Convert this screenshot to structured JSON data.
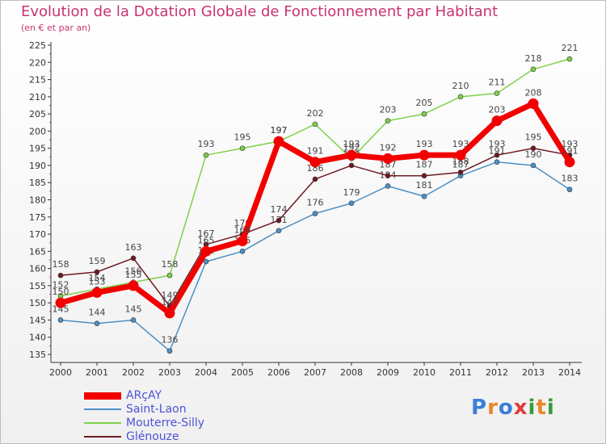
{
  "title": "Evolution de la Dotation Globale de Fonctionnement par Habitant",
  "subtitle": "(en € et par an)",
  "logo": {
    "text": "Proxiti",
    "letters": [
      "P",
      "r",
      "o",
      "x",
      "i",
      "t",
      "i"
    ],
    "colors": [
      "#3a7fd8",
      "#e8862a",
      "#3a7fd8",
      "#e23b3b",
      "#3a9a3a",
      "#e8862a",
      "#3a9a3a"
    ]
  },
  "chart_data": {
    "type": "line",
    "title": "Evolution de la Dotation Globale de Fonctionnement par Habitant",
    "subtitle": "(en € et par an)",
    "xlabel": "",
    "ylabel": "",
    "ylim": [
      135,
      225
    ],
    "yticks": [
      135,
      140,
      145,
      150,
      155,
      160,
      165,
      170,
      175,
      180,
      185,
      190,
      195,
      200,
      205,
      210,
      215,
      220,
      225
    ],
    "grid": false,
    "legend": "bottom-left",
    "categories": [
      "2000",
      "2001",
      "2002",
      "2003",
      "2004",
      "2005",
      "2006",
      "2007",
      "2008",
      "2009",
      "2010",
      "2011",
      "2012",
      "2013",
      "2014"
    ],
    "series": [
      {
        "name": "Saint-Laon",
        "color": "#4a90c8",
        "values": [
          145,
          144,
          145,
          136,
          162,
          165,
          171,
          176,
          179,
          184,
          181,
          187,
          191,
          190,
          183
        ]
      },
      {
        "name": "Mouterre-Silly",
        "color": "#7dd24a",
        "values": [
          152,
          154,
          156,
          158,
          193,
          195,
          197,
          202,
          192,
          203,
          205,
          210,
          211,
          218,
          221
        ]
      },
      {
        "name": "Glénouze",
        "color": "#6e1a22",
        "values": [
          158,
          159,
          163,
          149,
          167,
          170,
          174,
          186,
          190,
          187,
          187,
          188,
          193,
          195,
          193
        ]
      },
      {
        "name": "ARçAY",
        "color": "#f20000",
        "values": [
          150,
          153,
          155,
          147,
          165,
          168,
          197,
          191,
          193,
          192,
          193,
          193,
          203,
          208,
          191
        ]
      }
    ],
    "legend_order": [
      "ARçAY",
      "Saint-Laon",
      "Mouterre-Silly",
      "Glénouze"
    ]
  }
}
